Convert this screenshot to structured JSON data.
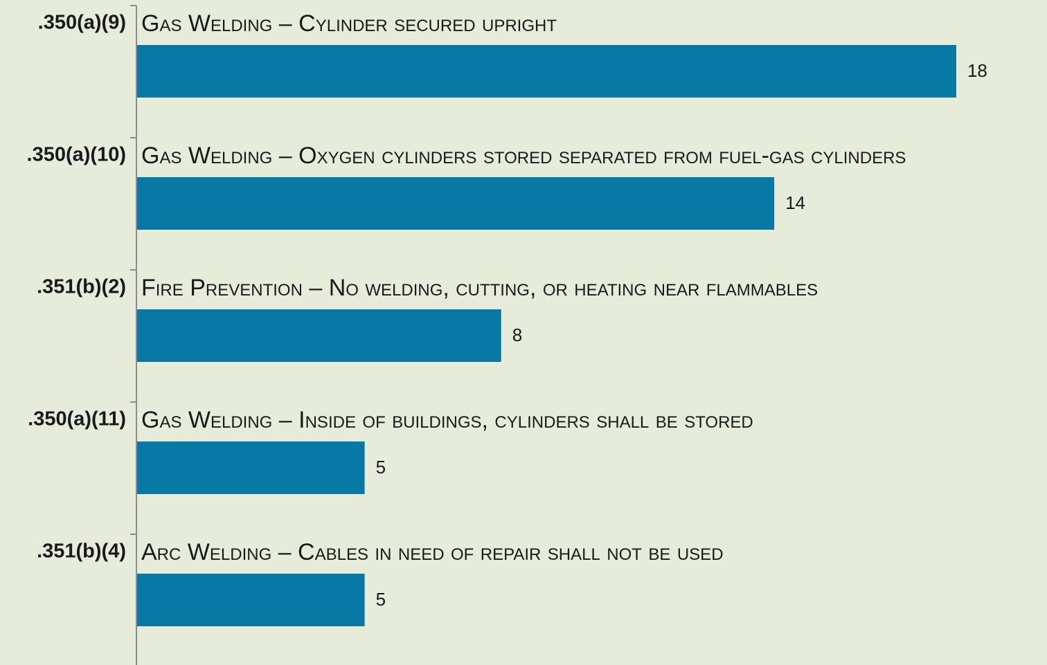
{
  "chart_data": {
    "type": "bar",
    "orientation": "horizontal",
    "categories": [
      ".350(a)(9)",
      ".350(a)(10)",
      ".351(b)(2)",
      ".350(a)(11)",
      ".351(b)(4)"
    ],
    "descriptions": [
      "Gas Welding – Cylinder secured upright",
      "Gas Welding – Oxygen cylinders stored separated from fuel-gas cylinders",
      "Fire Prevention – No welding, cutting, or heating near flammables",
      "Gas Welding – Inside of buildings, cylinders shall be stored",
      "Arc Welding – Cables in need of repair shall not be used"
    ],
    "values": [
      18,
      14,
      8,
      5,
      5
    ],
    "color": "#0878a4"
  }
}
